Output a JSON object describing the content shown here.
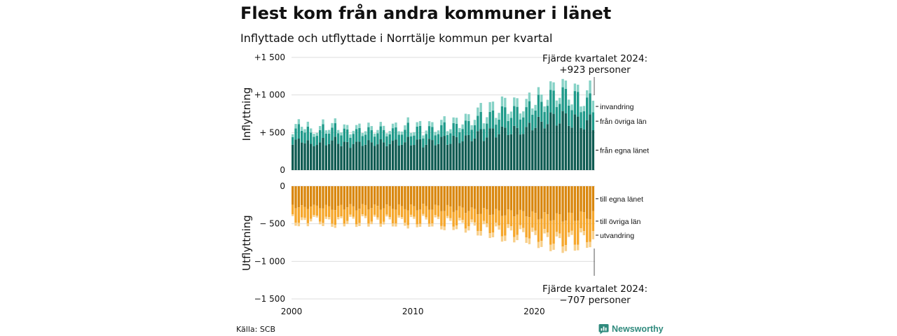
{
  "title": "Flest kom från andra kommuner i länet",
  "subtitle": "Inflyttade och utflyttade i Norrtälje kommun per kvartal",
  "source": "Källa: SCB",
  "brand": "Newsworthy",
  "colors": {
    "in_eget_lan": "#0f5b52",
    "in_ovriga_lan": "#1f9a8a",
    "invandring": "#86d2c6",
    "ut_eget_lan": "#d9870e",
    "ut_ovriga_lan": "#f6a72c",
    "utvandring": "#f8cf8a",
    "grid": "#dddddd",
    "brand": "#2f8a7d"
  },
  "chart_data": [
    {
      "type": "bar",
      "stacked": true,
      "ylabel": "Inflyttning",
      "ylim": [
        0,
        1500
      ],
      "yticks": [
        "0",
        "+ 500",
        "+1 000",
        "+1 500"
      ],
      "yticks_values": [
        0,
        500,
        1000,
        1500
      ],
      "xticks": [
        "2000",
        "2010",
        "2020"
      ],
      "x_start": "2000 Q1",
      "x_end": "2024 Q4",
      "grid": true,
      "series": [
        {
          "name": "från egna länet",
          "values": [
            338,
            406,
            419,
            367,
            357,
            398,
            349,
            317,
            335,
            370,
            429,
            330,
            345,
            395,
            445,
            349,
            318,
            377,
            374,
            297,
            348,
            378,
            377,
            322,
            338,
            400,
            369,
            322,
            344,
            410,
            369,
            318,
            346,
            391,
            405,
            326,
            336,
            371,
            444,
            329,
            335,
            405,
            411,
            302,
            337,
            417,
            400,
            330,
            347,
            442,
            456,
            337,
            349,
            457,
            440,
            359,
            382,
            462,
            466,
            385,
            420,
            519,
            545,
            388,
            434,
            557,
            556,
            436,
            478,
            580,
            565,
            466,
            477,
            588,
            562,
            474,
            482,
            575,
            631,
            530,
            562,
            709,
            645,
            556,
            613,
            768,
            749,
            592,
            621,
            786,
            755,
            589,
            566,
            742,
            712,
            562,
            540,
            665,
            743,
            531
          ]
        },
        {
          "name": "från övriga län",
          "values": [
            100,
            148,
            194,
            155,
            143,
            181,
            151,
            127,
            121,
            162,
            181,
            155,
            140,
            171,
            179,
            140,
            143,
            176,
            167,
            134,
            135,
            167,
            182,
            132,
            134,
            172,
            162,
            124,
            145,
            172,
            165,
            132,
            130,
            167,
            163,
            146,
            137,
            165,
            188,
            121,
            125,
            173,
            177,
            120,
            145,
            169,
            173,
            134,
            132,
            157,
            181,
            131,
            140,
            169,
            177,
            146,
            166,
            198,
            188,
            153,
            179,
            204,
            229,
            160,
            185,
            218,
            236,
            169,
            194,
            270,
            272,
            187,
            217,
            264,
            280,
            200,
            220,
            263,
            286,
            206,
            231,
            295,
            265,
            217,
            243,
            299,
            309,
            249,
            261,
            317,
            327,
            269,
            233,
            310,
            330,
            210,
            244,
            302,
            280,
            240
          ]
        },
        {
          "name": "invandring",
          "values": [
            40,
            60,
            65,
            55,
            45,
            65,
            55,
            40,
            40,
            55,
            65,
            45,
            50,
            60,
            65,
            45,
            40,
            55,
            60,
            45,
            40,
            55,
            60,
            40,
            45,
            60,
            55,
            40,
            45,
            60,
            55,
            40,
            45,
            60,
            65,
            45,
            40,
            60,
            70,
            45,
            45,
            60,
            65,
            40,
            45,
            65,
            65,
            45,
            50,
            70,
            80,
            50,
            55,
            75,
            80,
            55,
            60,
            90,
            90,
            60,
            70,
            110,
            120,
            75,
            85,
            130,
            120,
            90,
            90,
            130,
            125,
            95,
            85,
            115,
            115,
            80,
            80,
            110,
            115,
            85,
            75,
            100,
            95,
            75,
            80,
            115,
            110,
            85,
            80,
            110,
            110,
            80,
            75,
            100,
            95,
            75,
            70,
            95,
            170,
            153
          ]
        }
      ]
    },
    {
      "type": "bar",
      "stacked": true,
      "ylabel": "Utflyttning",
      "ylim": [
        -1500,
        0
      ],
      "yticks": [
        "0",
        "− 500",
        "−1 000",
        "−1 500"
      ],
      "yticks_values": [
        0,
        -500,
        -1000,
        -1500
      ],
      "xticks": [
        "2000",
        "2010",
        "2020"
      ],
      "x_start": "2000 Q1",
      "x_end": "2024 Q4",
      "grid": true,
      "series": [
        {
          "name": "till egna länet",
          "values": [
            -248,
            -295,
            -281,
            -253,
            -275,
            -306,
            -271,
            -249,
            -260,
            -295,
            -297,
            -247,
            -269,
            -315,
            -318,
            -261,
            -247,
            -311,
            -281,
            -240,
            -269,
            -322,
            -301,
            -239,
            -251,
            -311,
            -292,
            -243,
            -262,
            -315,
            -294,
            -244,
            -267,
            -304,
            -314,
            -242,
            -267,
            -307,
            -322,
            -243,
            -267,
            -323,
            -311,
            -235,
            -265,
            -315,
            -314,
            -248,
            -259,
            -334,
            -332,
            -251,
            -272,
            -344,
            -324,
            -268,
            -285,
            -357,
            -332,
            -283,
            -305,
            -375,
            -368,
            -290,
            -310,
            -383,
            -379,
            -304,
            -325,
            -398,
            -390,
            -310,
            -321,
            -403,
            -380,
            -316,
            -334,
            -403,
            -411,
            -335,
            -357,
            -442,
            -436,
            -347,
            -375,
            -463,
            -453,
            -359,
            -373,
            -473,
            -459,
            -353,
            -354,
            -463,
            -457,
            -335,
            -347,
            -436,
            -438,
            -333
          ]
        },
        {
          "name": "till övriga län",
          "values": [
            -125,
            -192,
            -207,
            -163,
            -144,
            -187,
            -163,
            -134,
            -132,
            -177,
            -194,
            -159,
            -143,
            -186,
            -197,
            -151,
            -155,
            -189,
            -183,
            -138,
            -139,
            -185,
            -190,
            -136,
            -144,
            -187,
            -178,
            -138,
            -153,
            -185,
            -180,
            -134,
            -145,
            -192,
            -183,
            -146,
            -144,
            -180,
            -196,
            -138,
            -138,
            -184,
            -190,
            -136,
            -149,
            -185,
            -182,
            -137,
            -148,
            -196,
            -204,
            -145,
            -155,
            -195,
            -198,
            -154,
            -163,
            -206,
            -202,
            -159,
            -175,
            -221,
            -230,
            -171,
            -186,
            -242,
            -236,
            -181,
            -198,
            -270,
            -269,
            -196,
            -213,
            -275,
            -268,
            -201,
            -223,
            -277,
            -286,
            -218,
            -234,
            -301,
            -293,
            -222,
            -242,
            -317,
            -314,
            -250,
            -258,
            -330,
            -325,
            -262,
            -240,
            -315,
            -321,
            -225,
            -251,
            -309,
            -304,
            -264
          ]
        },
        {
          "name": "utvandring",
          "values": [
            -25,
            -40,
            -45,
            -35,
            -30,
            -40,
            -35,
            -25,
            -25,
            -35,
            -40,
            -30,
            -30,
            -40,
            -40,
            -30,
            -25,
            -35,
            -40,
            -30,
            -25,
            -35,
            -40,
            -25,
            -30,
            -40,
            -35,
            -25,
            -30,
            -40,
            -35,
            -25,
            -30,
            -40,
            -40,
            -30,
            -25,
            -40,
            -45,
            -30,
            -30,
            -40,
            -40,
            -25,
            -30,
            -40,
            -40,
            -30,
            -30,
            -45,
            -50,
            -30,
            -35,
            -45,
            -50,
            -35,
            -40,
            -55,
            -55,
            -40,
            -45,
            -60,
            -60,
            -45,
            -50,
            -65,
            -65,
            -50,
            -55,
            -70,
            -70,
            -50,
            -55,
            -70,
            -70,
            -55,
            -55,
            -75,
            -75,
            -55,
            -60,
            -80,
            -80,
            -60,
            -60,
            -85,
            -80,
            -60,
            -60,
            -85,
            -80,
            -60,
            -55,
            -80,
            -75,
            -55,
            -55,
            -75,
            -70,
            -110
          ]
        }
      ]
    }
  ],
  "annotations": {
    "top": {
      "line1": "Fjärde kvartalet 2024:",
      "line2": "+923 personer"
    },
    "bottom": {
      "line1": "Fjärde kvartalet 2024:",
      "line2": "−707 personer"
    }
  }
}
